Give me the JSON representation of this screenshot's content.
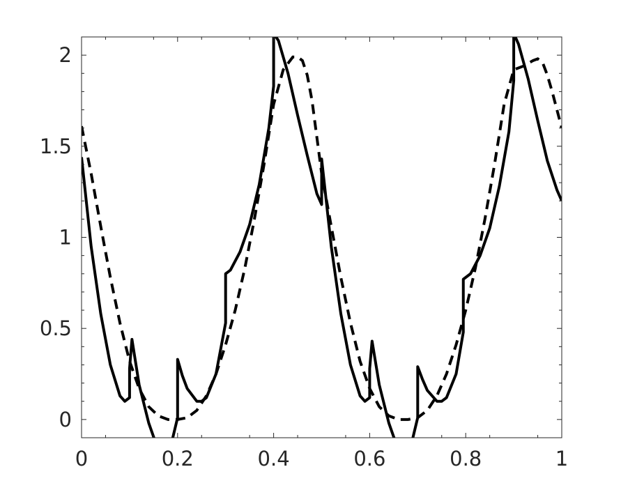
{
  "chart_data": {
    "type": "line",
    "title": "",
    "xlabel": "",
    "ylabel": "",
    "xlim": [
      0,
      1
    ],
    "ylim": [
      -0.1,
      2.1
    ],
    "x_ticks": [
      {
        "value": 0,
        "label": "0"
      },
      {
        "value": 0.2,
        "label": "0.2"
      },
      {
        "value": 0.4,
        "label": "0.4"
      },
      {
        "value": 0.6,
        "label": "0.6"
      },
      {
        "value": 0.8,
        "label": "0.8"
      },
      {
        "value": 1,
        "label": "1"
      }
    ],
    "y_ticks": [
      {
        "value": 0,
        "label": "0"
      },
      {
        "value": 0.5,
        "label": "0.5"
      },
      {
        "value": 1,
        "label": "1"
      },
      {
        "value": 1.5,
        "label": "1.5"
      },
      {
        "value": 2,
        "label": "2"
      }
    ],
    "grid": false,
    "legend": "none",
    "series": [
      {
        "style": "solid",
        "color": "#000000",
        "x": [
          0,
          0.02,
          0.04,
          0.06,
          0.08,
          0.09,
          0.1,
          0.1,
          0.105,
          0.12,
          0.14,
          0.16,
          0.17,
          0.18,
          0.19,
          0.2,
          0.2,
          0.21,
          0.22,
          0.24,
          0.25,
          0.26,
          0.28,
          0.3,
          0.3,
          0.31,
          0.33,
          0.35,
          0.37,
          0.39,
          0.4,
          0.4,
          0.41,
          0.43,
          0.45,
          0.47,
          0.49,
          0.5,
          0.5,
          0.52,
          0.54,
          0.56,
          0.58,
          0.59,
          0.6,
          0.6,
          0.605,
          0.62,
          0.64,
          0.66,
          0.67,
          0.68,
          0.69,
          0.7,
          0.7,
          0.71,
          0.72,
          0.74,
          0.75,
          0.76,
          0.78,
          0.795,
          0.795,
          0.81,
          0.83,
          0.85,
          0.87,
          0.89,
          0.9,
          0.9,
          0.91,
          0.93,
          0.95,
          0.97,
          0.99,
          1.0
        ],
        "y": [
          1.44,
          0.95,
          0.58,
          0.3,
          0.13,
          0.1,
          0.12,
          0.28,
          0.44,
          0.19,
          -0.02,
          -0.17,
          -0.22,
          -0.19,
          -0.1,
          0.01,
          0.33,
          0.24,
          0.17,
          0.1,
          0.1,
          0.12,
          0.25,
          0.53,
          0.8,
          0.82,
          0.92,
          1.07,
          1.29,
          1.6,
          1.83,
          2.12,
          2.08,
          1.9,
          1.67,
          1.45,
          1.24,
          1.18,
          1.43,
          0.95,
          0.58,
          0.3,
          0.13,
          0.1,
          0.12,
          0.28,
          0.43,
          0.19,
          -0.02,
          -0.17,
          -0.22,
          -0.19,
          -0.1,
          0.01,
          0.29,
          0.22,
          0.16,
          0.1,
          0.1,
          0.12,
          0.25,
          0.48,
          0.77,
          0.8,
          0.9,
          1.05,
          1.28,
          1.58,
          1.86,
          2.12,
          2.06,
          1.87,
          1.64,
          1.42,
          1.26,
          1.2
        ]
      },
      {
        "style": "dashed",
        "color": "#000000",
        "x": [
          0,
          0.02,
          0.04,
          0.06,
          0.08,
          0.1,
          0.12,
          0.14,
          0.16,
          0.18,
          0.2,
          0.22,
          0.24,
          0.26,
          0.28,
          0.3,
          0.32,
          0.34,
          0.36,
          0.38,
          0.4,
          0.42,
          0.44,
          0.45,
          0.46,
          0.47,
          0.48,
          0.5,
          0.52,
          0.54,
          0.56,
          0.58,
          0.6,
          0.62,
          0.64,
          0.66,
          0.68,
          0.7,
          0.72,
          0.74,
          0.76,
          0.78,
          0.8,
          0.82,
          0.84,
          0.86,
          0.88,
          0.9,
          0.92,
          0.94,
          0.95,
          0.96,
          0.97,
          0.98,
          1.0
        ],
        "y": [
          1.61,
          1.35,
          1.06,
          0.78,
          0.53,
          0.32,
          0.17,
          0.07,
          0.02,
          0.0,
          0.0,
          0.01,
          0.05,
          0.13,
          0.25,
          0.41,
          0.6,
          0.83,
          1.1,
          1.4,
          1.73,
          1.92,
          1.99,
          1.99,
          1.97,
          1.89,
          1.75,
          1.35,
          1.06,
          0.78,
          0.53,
          0.32,
          0.17,
          0.07,
          0.02,
          0.0,
          0.0,
          0.01,
          0.05,
          0.13,
          0.25,
          0.41,
          0.6,
          0.83,
          1.1,
          1.4,
          1.73,
          1.92,
          1.94,
          1.97,
          1.98,
          1.96,
          1.89,
          1.8,
          1.6
        ]
      }
    ]
  }
}
